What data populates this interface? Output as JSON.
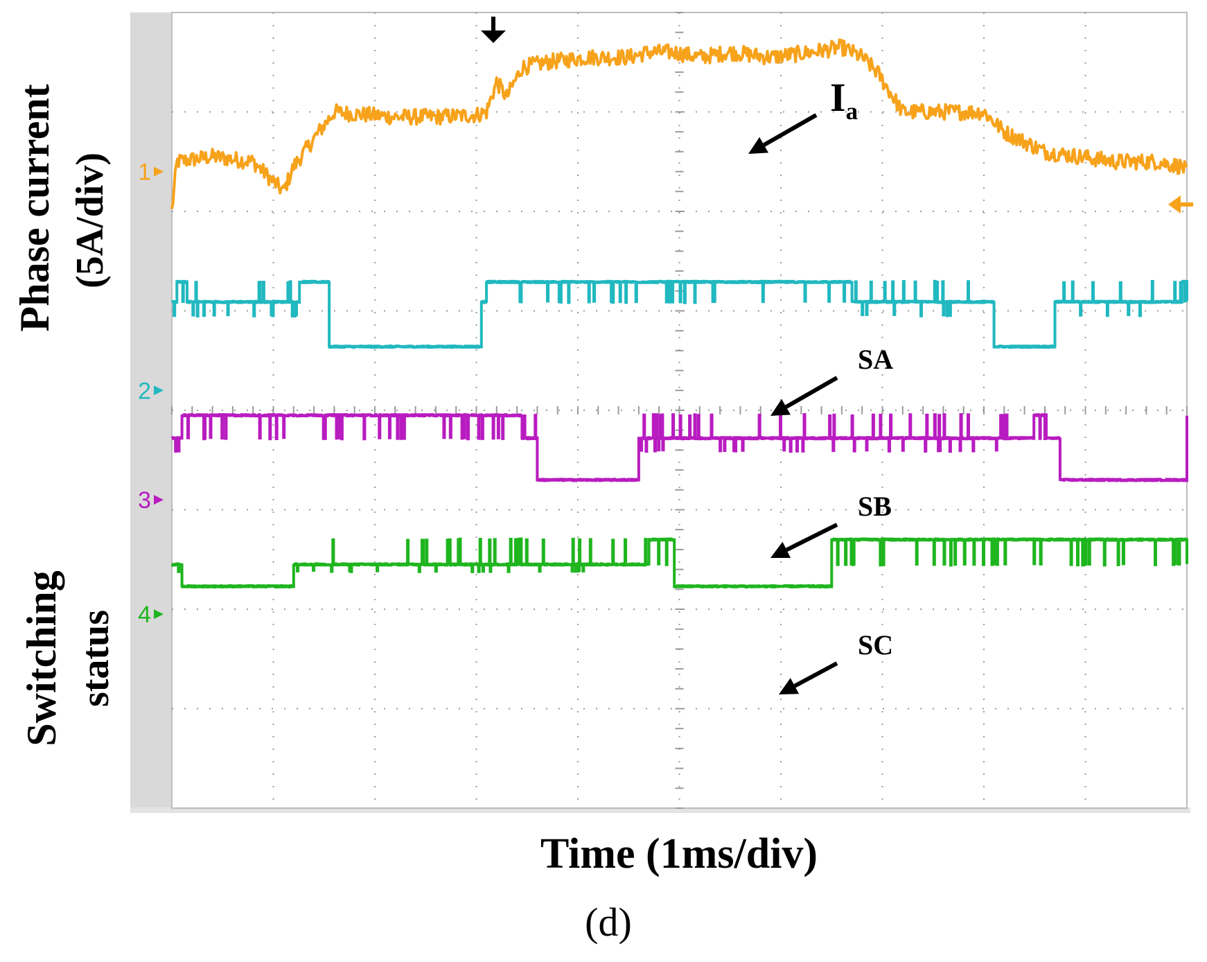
{
  "chart_data": {
    "type": "line",
    "y_label_current": [
      "Phase current",
      "(5A/div)"
    ],
    "y_label_switching": [
      "Switching",
      "status"
    ],
    "xlabel": "Time (1ms/div)",
    "caption": "(d)",
    "x_divisions": 10,
    "y_divisions": 8,
    "xlim": [
      0,
      10
    ],
    "ylim": [
      0,
      8
    ],
    "grid": true,
    "colors": {
      "Ia": "#f7a21b",
      "SA": "#21b8c0",
      "SB": "#b81cc0",
      "SC": "#1fb51f",
      "grid": "#9a9a9a",
      "frame": "#c8c8c8"
    },
    "annotations": [
      {
        "series": "Ia",
        "text": "I",
        "sub": "a"
      },
      {
        "series": "SA",
        "text": "SA"
      },
      {
        "series": "SB",
        "text": "SB"
      },
      {
        "series": "SC",
        "text": "SC"
      }
    ],
    "channel_markers": [
      "1",
      "2",
      "3",
      "4"
    ],
    "channel_offsets_div": [
      6.4,
      4.2,
      3.1,
      1.95
    ],
    "series": [
      {
        "name": "Ia",
        "kind": "analog",
        "x": [
          0,
          0.05,
          0.4,
          0.8,
          1.1,
          1.2,
          1.45,
          1.6,
          1.8,
          2.2,
          2.6,
          3.0,
          3.1,
          3.2,
          3.3,
          3.45,
          3.7,
          4.1,
          4.5,
          4.7,
          4.95,
          5.2,
          5.5,
          5.9,
          6.3,
          6.6,
          6.8,
          6.95,
          7.2,
          7.7,
          8.0,
          8.2,
          8.6,
          8.95,
          9.3,
          9.7,
          9.95,
          10
        ],
        "y": [
          6.0,
          6.5,
          6.55,
          6.5,
          6.2,
          6.45,
          6.8,
          7.0,
          6.98,
          6.95,
          6.95,
          6.97,
          7.0,
          7.3,
          7.15,
          7.45,
          7.5,
          7.55,
          7.55,
          7.6,
          7.6,
          7.55,
          7.6,
          7.55,
          7.6,
          7.65,
          7.55,
          7.4,
          7.0,
          7.0,
          7.0,
          6.8,
          6.6,
          6.55,
          6.5,
          6.5,
          6.45,
          6.4
        ]
      },
      {
        "name": "SA",
        "kind": "digital",
        "low": 0.44,
        "mid": 0.89,
        "high": 1.09,
        "x": [
          0,
          0.05,
          0.15,
          1.25,
          1.55,
          3.05,
          3.1,
          4.8,
          6.5,
          6.7,
          7.0,
          8.1,
          8.7,
          9.95,
          10
        ],
        "level": [
          "mid",
          "high",
          "mid",
          "high",
          "low",
          "mid",
          "high",
          "high",
          "high",
          "mid",
          "mid",
          "low",
          "mid",
          "high",
          "mid"
        ]
      },
      {
        "name": "SB",
        "kind": "digital",
        "low": 0.2,
        "mid": 0.62,
        "high": 0.85,
        "x": [
          0,
          0.1,
          2.1,
          3.1,
          3.45,
          3.6,
          4.4,
          4.6,
          5.3,
          6.0,
          6.9,
          8.5,
          8.6,
          8.75,
          9.95,
          10
        ],
        "level": [
          "mid",
          "high",
          "high",
          "high",
          "mid",
          "low",
          "low",
          "mid",
          "mid",
          "mid",
          "mid",
          "high",
          "mid",
          "low",
          "low",
          "high"
        ]
      },
      {
        "name": "SC",
        "kind": "digital",
        "low": 0.28,
        "mid": 0.5,
        "high": 0.75,
        "x": [
          0,
          0.1,
          1.2,
          1.5,
          3.1,
          3.4,
          4.6,
          4.7,
          4.95,
          5.5,
          6.0,
          6.5,
          6.55,
          7.0,
          8.2,
          9.95,
          10
        ],
        "level": [
          "mid",
          "low",
          "mid",
          "mid",
          "mid",
          "mid",
          "mid",
          "high",
          "low",
          "low",
          "low",
          "high",
          "high",
          "high",
          "high",
          "high",
          "mid"
        ]
      }
    ]
  }
}
